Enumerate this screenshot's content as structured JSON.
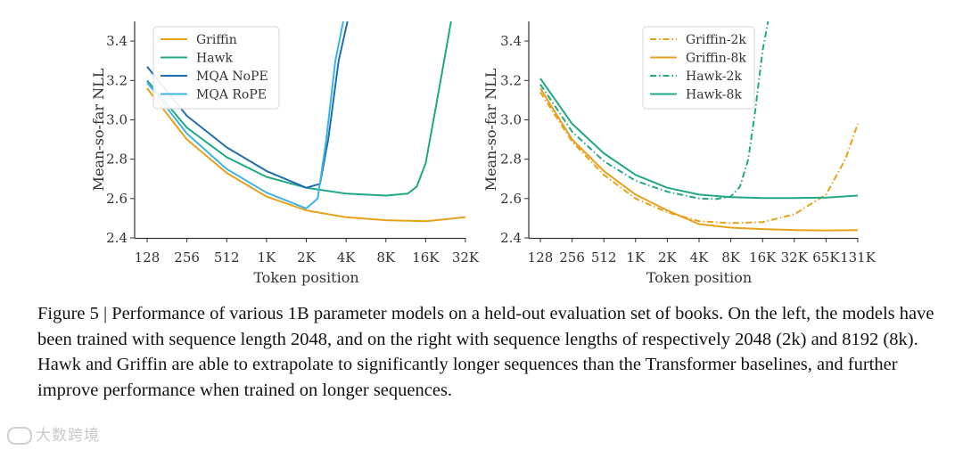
{
  "caption": "Figure 5 | Performance of various 1B parameter models on a held-out evaluation set of books. On the left, the models have been trained with sequence length 2048, and on the right with sequence lengths of respectively 2048 (2k) and 8192 (8k). Hawk and Griffin are able to extrapolate to significantly longer sequences than the Transformer baselines, and further improve performance when trained on longer sequences.",
  "watermark": "大数跨境",
  "chart_data": [
    {
      "type": "line",
      "xlabel": "Token position",
      "ylabel": "Mean-so-far NLL",
      "xscale": "log2",
      "x_ticks": [
        {
          "value": 128,
          "label": "128"
        },
        {
          "value": 256,
          "label": "256"
        },
        {
          "value": 512,
          "label": "512"
        },
        {
          "value": 1024,
          "label": "1K"
        },
        {
          "value": 2048,
          "label": "2K"
        },
        {
          "value": 4096,
          "label": "4K"
        },
        {
          "value": 8192,
          "label": "8K"
        },
        {
          "value": 16384,
          "label": "16K"
        },
        {
          "value": 32768,
          "label": "32K"
        }
      ],
      "xlim": [
        128,
        32768
      ],
      "ylim": [
        2.4,
        3.5
      ],
      "y_ticks": [
        {
          "value": 2.4,
          "label": "2.4"
        },
        {
          "value": 2.6,
          "label": "2.6"
        },
        {
          "value": 2.8,
          "label": "2.8"
        },
        {
          "value": 3.0,
          "label": "3.0"
        },
        {
          "value": 3.2,
          "label": "3.2"
        },
        {
          "value": 3.4,
          "label": "3.4"
        }
      ],
      "legend_position": "top-left",
      "series": [
        {
          "name": "Griffin",
          "color": "#e5a21a",
          "dash": "solid",
          "x": [
            128,
            256,
            512,
            1024,
            2048,
            4096,
            8192,
            16384,
            32768
          ],
          "y": [
            3.16,
            2.9,
            2.73,
            2.61,
            2.54,
            2.505,
            2.49,
            2.485,
            2.505
          ]
        },
        {
          "name": "Hawk",
          "color": "#22a884",
          "dash": "solid",
          "x": [
            128,
            256,
            512,
            1024,
            2048,
            4096,
            8192,
            12000,
            14000,
            16384,
            20000,
            24000,
            25500
          ],
          "y": [
            3.2,
            2.96,
            2.81,
            2.71,
            2.655,
            2.625,
            2.615,
            2.625,
            2.66,
            2.78,
            3.1,
            3.4,
            3.5
          ]
        },
        {
          "name": "MQA NoPE",
          "color": "#1f6fae",
          "dash": "solid",
          "x": [
            128,
            256,
            512,
            1024,
            2048,
            2600,
            3000,
            3600,
            4200
          ],
          "y": [
            3.27,
            3.02,
            2.86,
            2.74,
            2.655,
            2.675,
            2.9,
            3.3,
            3.5
          ]
        },
        {
          "name": "MQA RoPE",
          "color": "#3ab4e6",
          "dash": "solid",
          "x": [
            128,
            256,
            512,
            1024,
            2048,
            2500,
            2900,
            3400,
            3900
          ],
          "y": [
            3.19,
            2.93,
            2.75,
            2.63,
            2.55,
            2.6,
            2.9,
            3.3,
            3.5
          ]
        }
      ]
    },
    {
      "type": "line",
      "xlabel": "Token position",
      "ylabel": "Mean-so-far NLL",
      "xscale": "log2",
      "x_ticks": [
        {
          "value": 128,
          "label": "128"
        },
        {
          "value": 256,
          "label": "256"
        },
        {
          "value": 512,
          "label": "512"
        },
        {
          "value": 1024,
          "label": "1K"
        },
        {
          "value": 2048,
          "label": "2K"
        },
        {
          "value": 4096,
          "label": "4K"
        },
        {
          "value": 8192,
          "label": "8K"
        },
        {
          "value": 16384,
          "label": "16K"
        },
        {
          "value": 32768,
          "label": "32K"
        },
        {
          "value": 65536,
          "label": "65K"
        },
        {
          "value": 131072,
          "label": "131K"
        }
      ],
      "xlim": [
        128,
        131072
      ],
      "ylim": [
        2.4,
        3.5
      ],
      "y_ticks": [
        {
          "value": 2.4,
          "label": "2.4"
        },
        {
          "value": 2.6,
          "label": "2.6"
        },
        {
          "value": 2.8,
          "label": "2.8"
        },
        {
          "value": 3.0,
          "label": "3.0"
        },
        {
          "value": 3.2,
          "label": "3.2"
        },
        {
          "value": 3.4,
          "label": "3.4"
        }
      ],
      "legend_position": "top-right",
      "series": [
        {
          "name": "Griffin-2k",
          "color": "#e5a21a",
          "dash": "dashdot",
          "x": [
            128,
            256,
            512,
            1024,
            2048,
            4096,
            8192,
            16384,
            32768,
            65536,
            100000,
            131072
          ],
          "y": [
            3.14,
            2.89,
            2.72,
            2.6,
            2.53,
            2.485,
            2.475,
            2.48,
            2.52,
            2.62,
            2.8,
            2.98
          ]
        },
        {
          "name": "Griffin-8k",
          "color": "#e5a21a",
          "dash": "solid",
          "x": [
            128,
            256,
            512,
            1024,
            2048,
            4096,
            8192,
            16384,
            32768,
            65536,
            131072
          ],
          "y": [
            3.16,
            2.9,
            2.74,
            2.62,
            2.54,
            2.47,
            2.452,
            2.445,
            2.44,
            2.438,
            2.44
          ]
        },
        {
          "name": "Hawk-2k",
          "color": "#22a884",
          "dash": "dashdot",
          "x": [
            128,
            256,
            512,
            1024,
            2048,
            4096,
            6000,
            8192,
            10000,
            12000,
            14000,
            16384,
            18500
          ],
          "y": [
            3.18,
            2.94,
            2.79,
            2.69,
            2.635,
            2.6,
            2.598,
            2.61,
            2.66,
            2.8,
            3.05,
            3.35,
            3.5
          ]
        },
        {
          "name": "Hawk-8k",
          "color": "#22a884",
          "dash": "solid",
          "x": [
            128,
            256,
            512,
            1024,
            2048,
            4096,
            8192,
            16384,
            32768,
            65536,
            131072
          ],
          "y": [
            3.21,
            2.98,
            2.83,
            2.72,
            2.655,
            2.62,
            2.607,
            2.603,
            2.603,
            2.605,
            2.615
          ]
        }
      ]
    }
  ]
}
